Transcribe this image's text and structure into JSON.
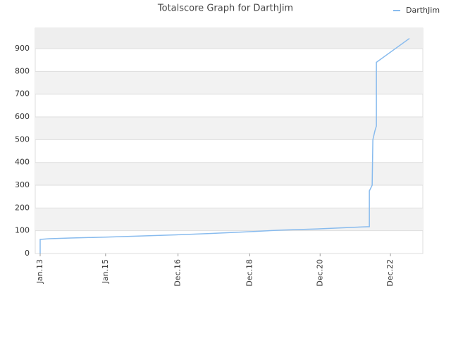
{
  "chart_data": {
    "type": "line",
    "title": "Totalscore Graph for DarthJim",
    "x": [
      2013.0,
      2013.0,
      2013.26,
      2013.86,
      2014.86,
      2015.87,
      2016.87,
      2017.87,
      2018.87,
      2019.87,
      2020.88,
      2021.88,
      2022.36,
      2022.36,
      2022.44,
      2022.46,
      2022.52,
      2022.56,
      2022.56,
      2023.5
    ],
    "series": [
      {
        "name": "DarthJim",
        "color": "#88bbee",
        "values": [
          0,
          62,
          65,
          68,
          72,
          77,
          82,
          88,
          95,
          103,
          108,
          115,
          118,
          275,
          300,
          500,
          540,
          560,
          840,
          945
        ]
      }
    ],
    "xlim": [
      2012.86,
      2023.88
    ],
    "xticks": [
      {
        "value": 2013.0,
        "label": "Jan.13"
      },
      {
        "value": 2014.86,
        "label": "Jan.15"
      },
      {
        "value": 2016.92,
        "label": "Dec.16"
      },
      {
        "value": 2018.96,
        "label": "Dec.18"
      },
      {
        "value": 2020.96,
        "label": "Dec.20"
      },
      {
        "value": 2022.96,
        "label": "Dec.22"
      }
    ],
    "ylim": [
      0,
      990
    ],
    "yticks": [
      0,
      100,
      200,
      300,
      400,
      500,
      600,
      700,
      800,
      900
    ],
    "grid": true,
    "legend": "top-right"
  }
}
